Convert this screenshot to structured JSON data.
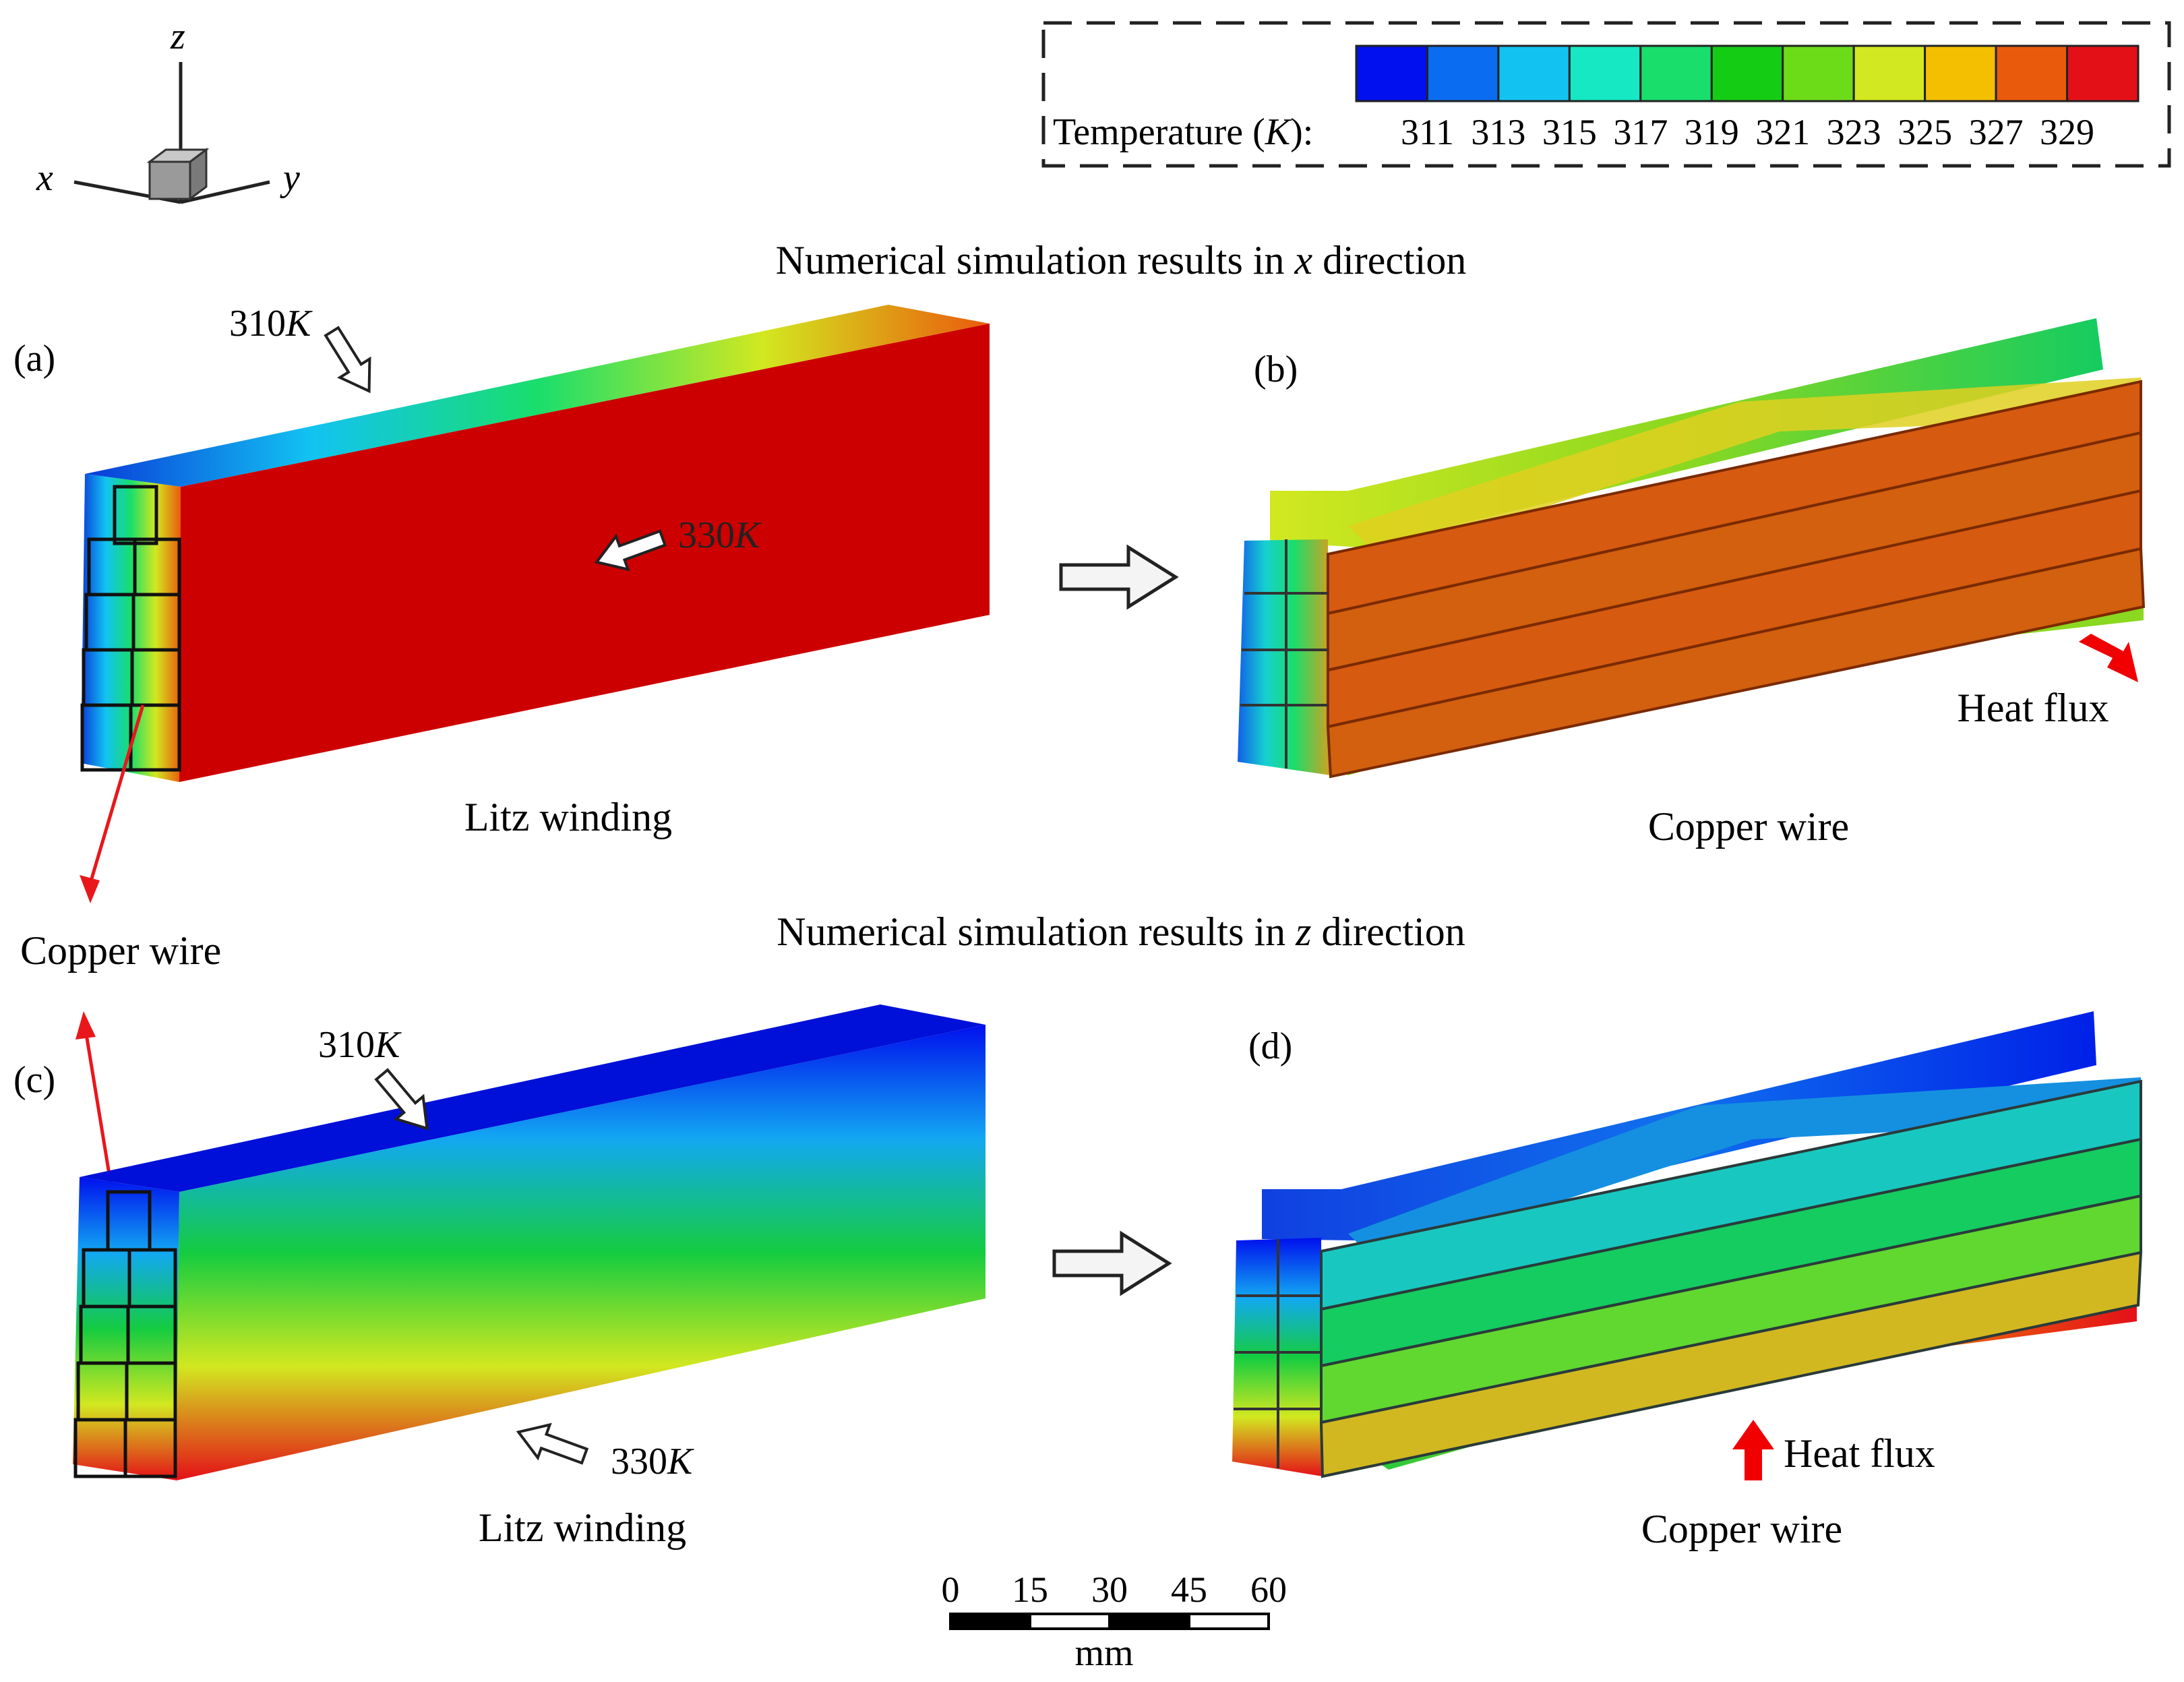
{
  "axes_triad": {
    "x": "x",
    "y": "y",
    "z": "z"
  },
  "legend": {
    "label_prefix": "Temperature (",
    "label_unit": "K",
    "label_suffix": "):",
    "ticks": [
      "311",
      "313",
      "315",
      "317",
      "319",
      "321",
      "323",
      "325",
      "327",
      "329"
    ],
    "colors": [
      "#0010ee",
      "#0a6cf0",
      "#12c3f2",
      "#16e8c4",
      "#19de6c",
      "#14cc14",
      "#6cdc18",
      "#d2e820",
      "#f3bf00",
      "#ea5a0c",
      "#e41018"
    ]
  },
  "section_x": {
    "title_prefix": "Numerical simulation results in ",
    "title_var": "x",
    "title_suffix": " direction"
  },
  "section_z": {
    "title_prefix": "Numerical simulation results in ",
    "title_var": "z",
    "title_suffix": " direction"
  },
  "panel_a": {
    "label": "(a)",
    "caption": "Litz winding",
    "top_temp": "310",
    "inner_temp": "330",
    "unit": "K"
  },
  "panel_b": {
    "label": "(b)",
    "caption": "Copper wire",
    "flux": "Heat flux"
  },
  "panel_c": {
    "label": "(c)",
    "caption": "Litz winding",
    "top_temp": "310",
    "bottom_temp": "330",
    "unit": "K"
  },
  "panel_d": {
    "label": "(d)",
    "caption": "Copper wire",
    "flux": "Heat flux"
  },
  "callout": {
    "label": "Copper wire"
  },
  "scale_bar": {
    "ticks": [
      "0",
      "15",
      "30",
      "45",
      "60"
    ],
    "unit": "mm"
  }
}
